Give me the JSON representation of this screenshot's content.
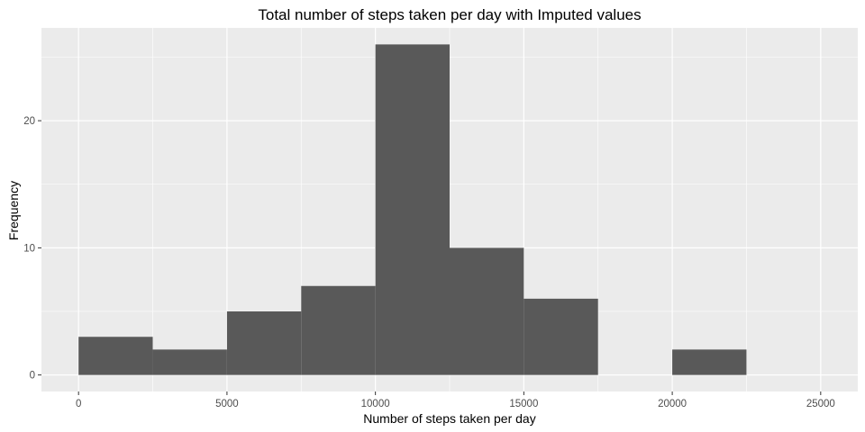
{
  "chart_data": {
    "type": "bar",
    "title": "Total number of steps taken per day with Imputed values",
    "xlabel": "Number of steps taken per day",
    "ylabel": "Frequency",
    "bins": [
      {
        "start": 0,
        "end": 2500,
        "count": 3
      },
      {
        "start": 2500,
        "end": 5000,
        "count": 2
      },
      {
        "start": 5000,
        "end": 7500,
        "count": 5
      },
      {
        "start": 7500,
        "end": 10000,
        "count": 7
      },
      {
        "start": 10000,
        "end": 12500,
        "count": 26
      },
      {
        "start": 12500,
        "end": 15000,
        "count": 10
      },
      {
        "start": 15000,
        "end": 17500,
        "count": 6
      },
      {
        "start": 17500,
        "end": 20000,
        "count": 0
      },
      {
        "start": 20000,
        "end": 22500,
        "count": 2
      }
    ],
    "xlim": [
      -1250,
      26250
    ],
    "ylim": [
      -1.3,
      27.3
    ],
    "x_ticks": [
      0,
      5000,
      10000,
      15000,
      20000,
      25000
    ],
    "y_ticks": [
      0,
      10,
      20
    ],
    "grid": true,
    "legend": "none",
    "colors": {
      "bar": "#595959",
      "panel": "#ebebeb",
      "grid": "#ffffff"
    }
  }
}
